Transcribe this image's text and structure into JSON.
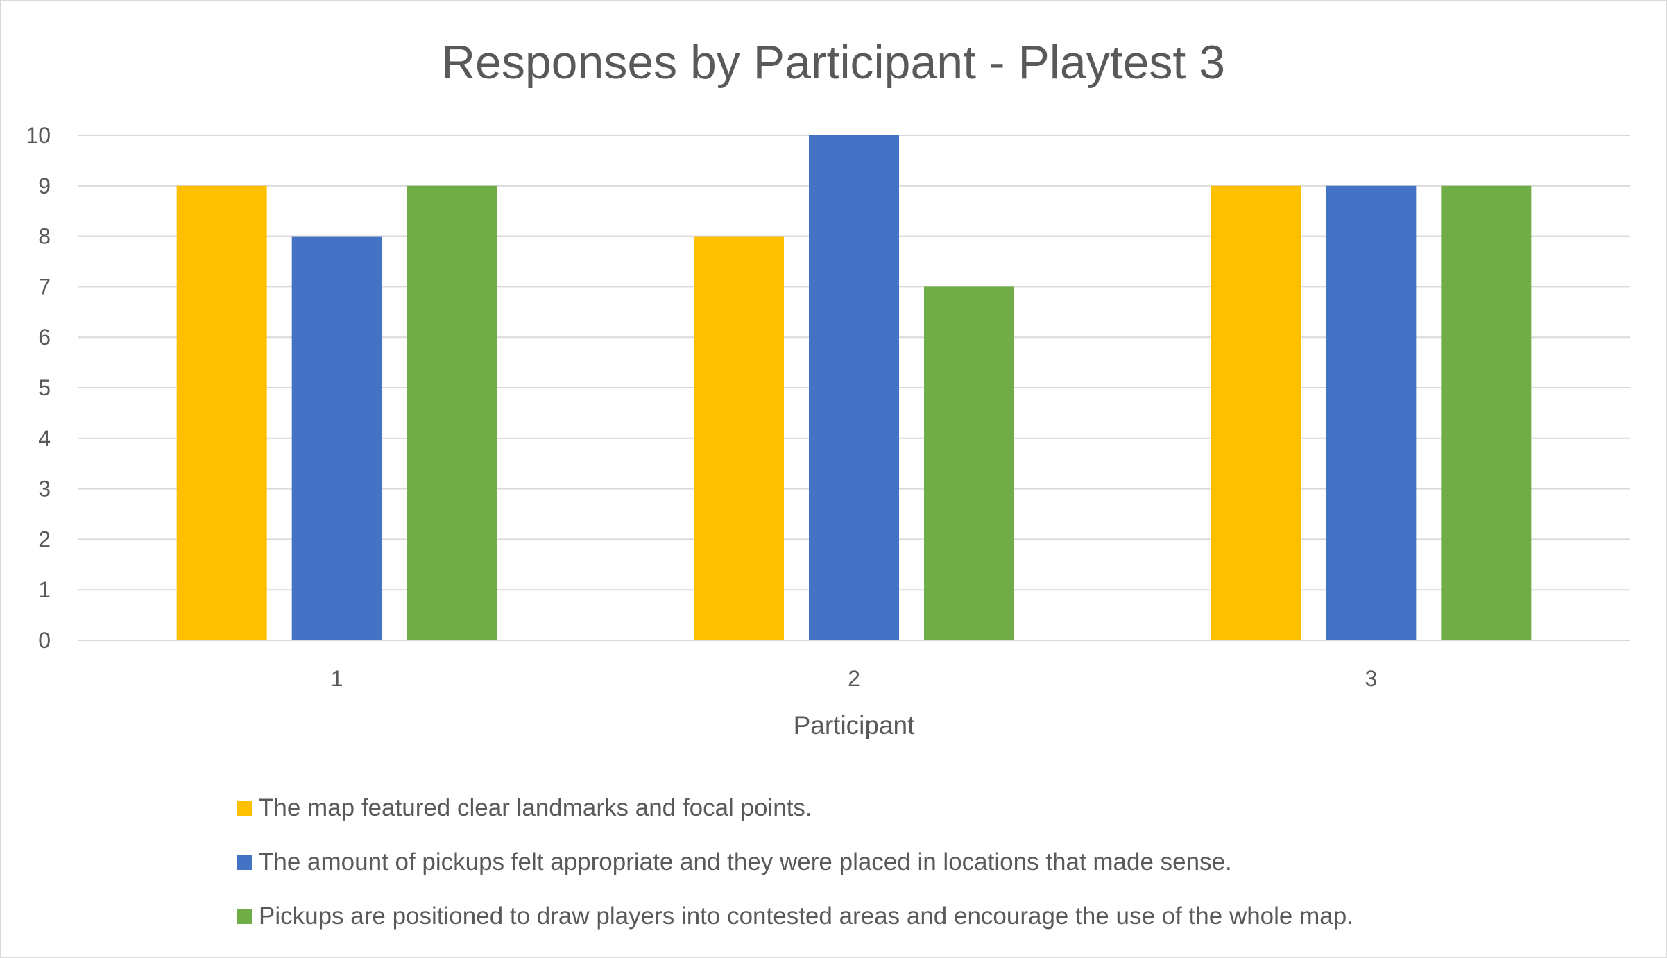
{
  "chart_data": {
    "type": "bar",
    "title": "Responses by Participant - Playtest 3",
    "xlabel": "Participant",
    "ylabel": "",
    "categories": [
      "1",
      "2",
      "3"
    ],
    "ylim": [
      0,
      10
    ],
    "yticks": [
      0,
      1,
      2,
      3,
      4,
      5,
      6,
      7,
      8,
      9,
      10
    ],
    "grid": true,
    "legend_position": "bottom",
    "series": [
      {
        "name": "The map featured clear landmarks and focal points.",
        "color": "#FFC000",
        "values": [
          9,
          8,
          9
        ]
      },
      {
        "name": "The amount of pickups felt appropriate and they were placed in locations that made sense.",
        "color": "#4472C4",
        "values": [
          8,
          10,
          9
        ]
      },
      {
        "name": "Pickups are positioned to draw players into contested areas and encourage the use of the whole map.",
        "color": "#70AD47",
        "values": [
          9,
          7,
          9
        ]
      }
    ]
  }
}
